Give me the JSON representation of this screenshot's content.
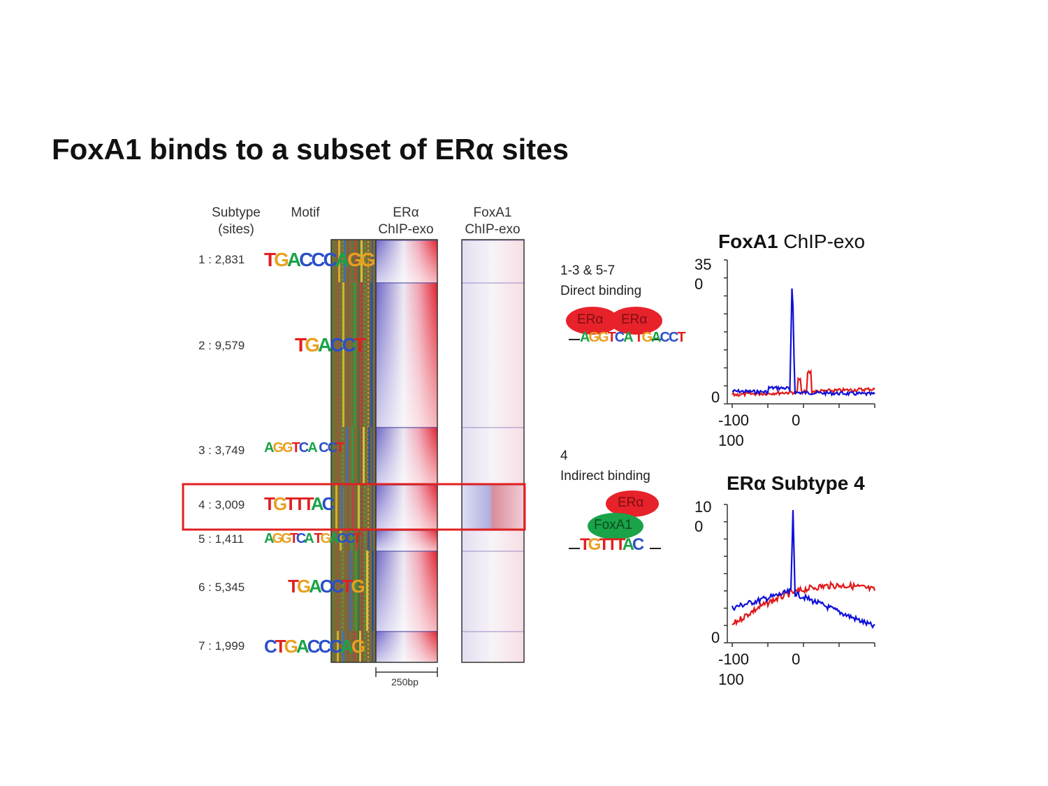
{
  "title": "FoxA1 binds to a subset of ERα sites",
  "headers": {
    "subtype": "Subtype\n(sites)",
    "motif": "Motif",
    "era": "ERα\nChIP-exo",
    "foxa1": "FoxA1\nChIP-exo"
  },
  "subtypes": [
    {
      "label": "1 : 2,831",
      "motif": "TGACCCAGG"
    },
    {
      "label": "2 : 9,579",
      "motif": "TGACCT"
    },
    {
      "label": "3 : 3,749",
      "motif": "AGGTCA CCT"
    },
    {
      "label": "4 : 3,009",
      "motif": "TGTTTAC"
    },
    {
      "label": "5 : 1,411",
      "motif": "AGGTCA TGACCT"
    },
    {
      "label": "6 : 5,345",
      "motif": "TGACCTG"
    },
    {
      "label": "7 : 1,999",
      "motif": "CTGACCCAG"
    }
  ],
  "scale_label": "250bp",
  "models": {
    "direct_heading": "1-3 & 5-7\nDirect binding",
    "indirect_heading": "4\nIndirect binding",
    "era": "ERα",
    "foxa1": "FoxA1"
  },
  "plots": [
    {
      "title_bold": "FoxA1",
      "title_rest": " ChIP-exo",
      "ymax": "35\n0",
      "ymin": "0",
      "xticks": "-100          0\n100"
    },
    {
      "title_bold": "ERα Subtype 4",
      "title_rest": "",
      "ymax": "10\n0",
      "ymin": "0",
      "xticks": "-100          0\n100"
    }
  ],
  "colors": {
    "blue": "#1010d8",
    "red": "#e01818",
    "era_oval": "#e8222a",
    "foxa1_oval": "#1aa348",
    "highlight": "#e02020"
  }
}
